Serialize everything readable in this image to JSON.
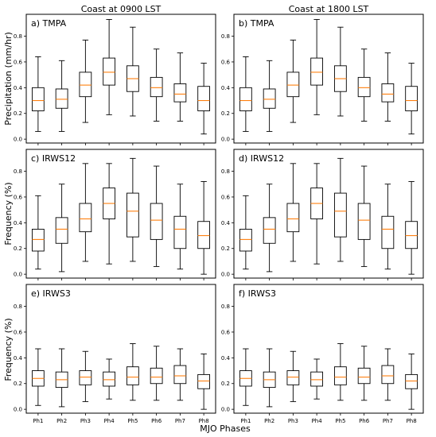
{
  "column_titles": [
    "Coast at 0900 LST",
    "Coast at 1800 LST"
  ],
  "xlabel": "MJO Phases",
  "ylabels": [
    "Precipitation (mm/hr)",
    "Frequency (%)",
    "Frequency (%)"
  ],
  "categories": [
    "Ph1",
    "Ph2",
    "Ph3",
    "Ph4",
    "Ph5",
    "Ph6",
    "Ph7",
    "Ph8"
  ],
  "yticks": [
    "0.0",
    "0.2",
    "0.4",
    "0.6",
    "0.8"
  ],
  "colors": {
    "median": "#ff7f0e",
    "box": "#000000"
  },
  "chart_data": [
    {
      "type": "box",
      "title": "a) TMPA",
      "ylim": [
        -0.03,
        0.97
      ],
      "series": [
        [
          0.06,
          0.22,
          0.3,
          0.4,
          0.64
        ],
        [
          0.06,
          0.24,
          0.31,
          0.39,
          0.61
        ],
        [
          0.13,
          0.33,
          0.42,
          0.52,
          0.77
        ],
        [
          0.19,
          0.42,
          0.52,
          0.63,
          0.93
        ],
        [
          0.18,
          0.37,
          0.47,
          0.57,
          0.87
        ],
        [
          0.14,
          0.33,
          0.4,
          0.48,
          0.7
        ],
        [
          0.14,
          0.29,
          0.35,
          0.43,
          0.67
        ],
        [
          0.04,
          0.22,
          0.3,
          0.41,
          0.59
        ]
      ]
    },
    {
      "type": "box",
      "title": "b) TMPA",
      "ylim": [
        -0.03,
        0.97
      ],
      "series": [
        [
          0.06,
          0.22,
          0.3,
          0.4,
          0.64
        ],
        [
          0.06,
          0.24,
          0.31,
          0.39,
          0.61
        ],
        [
          0.13,
          0.33,
          0.42,
          0.52,
          0.77
        ],
        [
          0.19,
          0.42,
          0.52,
          0.63,
          0.93
        ],
        [
          0.18,
          0.37,
          0.47,
          0.57,
          0.87
        ],
        [
          0.14,
          0.33,
          0.4,
          0.48,
          0.7
        ],
        [
          0.14,
          0.29,
          0.35,
          0.43,
          0.67
        ],
        [
          0.04,
          0.22,
          0.3,
          0.41,
          0.59
        ]
      ]
    },
    {
      "type": "box",
      "title": "c) IRWS12",
      "ylim": [
        -0.03,
        0.97
      ],
      "series": [
        [
          0.04,
          0.18,
          0.27,
          0.35,
          0.61
        ],
        [
          0.02,
          0.24,
          0.35,
          0.44,
          0.7
        ],
        [
          0.1,
          0.33,
          0.43,
          0.55,
          0.86
        ],
        [
          0.08,
          0.43,
          0.55,
          0.67,
          0.86
        ],
        [
          0.1,
          0.29,
          0.49,
          0.63,
          0.9
        ],
        [
          0.06,
          0.27,
          0.42,
          0.55,
          0.84
        ],
        [
          0.04,
          0.2,
          0.35,
          0.45,
          0.7
        ],
        [
          0.0,
          0.2,
          0.3,
          0.41,
          0.72
        ]
      ]
    },
    {
      "type": "box",
      "title": "d) IRWS12",
      "ylim": [
        -0.03,
        0.97
      ],
      "series": [
        [
          0.04,
          0.18,
          0.27,
          0.35,
          0.61
        ],
        [
          0.02,
          0.24,
          0.35,
          0.44,
          0.7
        ],
        [
          0.1,
          0.33,
          0.43,
          0.55,
          0.86
        ],
        [
          0.08,
          0.43,
          0.55,
          0.67,
          0.86
        ],
        [
          0.1,
          0.29,
          0.49,
          0.63,
          0.9
        ],
        [
          0.06,
          0.27,
          0.42,
          0.55,
          0.84
        ],
        [
          0.04,
          0.2,
          0.35,
          0.45,
          0.7
        ],
        [
          0.0,
          0.2,
          0.3,
          0.41,
          0.72
        ]
      ]
    },
    {
      "type": "box",
      "title": "e) IRWS3",
      "ylim": [
        -0.03,
        0.97
      ],
      "series": [
        [
          0.03,
          0.18,
          0.24,
          0.3,
          0.47
        ],
        [
          0.02,
          0.17,
          0.23,
          0.29,
          0.47
        ],
        [
          0.06,
          0.19,
          0.25,
          0.3,
          0.45
        ],
        [
          0.08,
          0.18,
          0.23,
          0.29,
          0.39
        ],
        [
          0.07,
          0.19,
          0.25,
          0.33,
          0.51
        ],
        [
          0.07,
          0.2,
          0.25,
          0.32,
          0.49
        ],
        [
          0.07,
          0.2,
          0.26,
          0.34,
          0.47
        ],
        [
          0.0,
          0.16,
          0.22,
          0.27,
          0.43
        ]
      ]
    },
    {
      "type": "box",
      "title": "f) IRWS3",
      "ylim": [
        -0.03,
        0.97
      ],
      "series": [
        [
          0.03,
          0.18,
          0.24,
          0.3,
          0.47
        ],
        [
          0.02,
          0.17,
          0.23,
          0.29,
          0.47
        ],
        [
          0.06,
          0.19,
          0.25,
          0.3,
          0.45
        ],
        [
          0.08,
          0.18,
          0.23,
          0.29,
          0.39
        ],
        [
          0.07,
          0.19,
          0.25,
          0.33,
          0.51
        ],
        [
          0.07,
          0.2,
          0.25,
          0.32,
          0.49
        ],
        [
          0.07,
          0.2,
          0.26,
          0.34,
          0.47
        ],
        [
          0.0,
          0.16,
          0.22,
          0.27,
          0.43
        ]
      ]
    }
  ]
}
